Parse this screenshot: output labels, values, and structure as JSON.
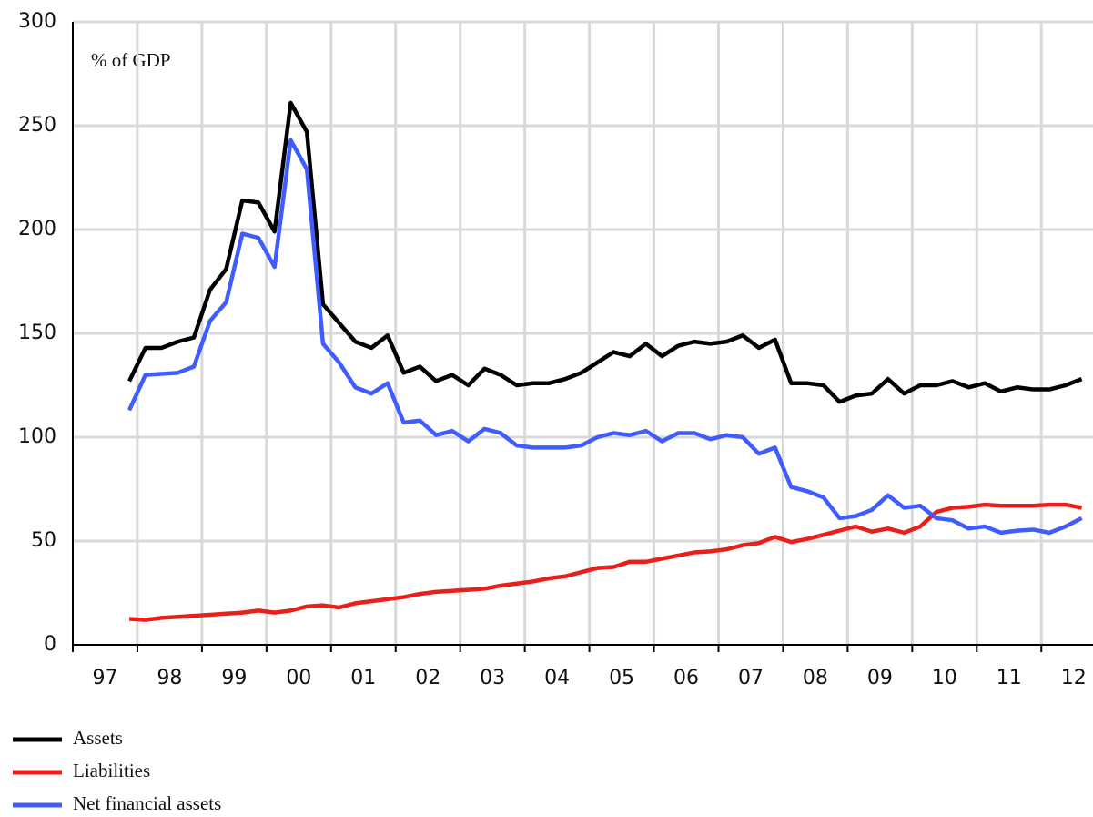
{
  "chart_data": {
    "type": "line",
    "annotation": "% of GDP",
    "x": [
      1997.875,
      1998.125,
      1998.375,
      1998.625,
      1998.875,
      1999.125,
      1999.375,
      1999.625,
      1999.875,
      2000.125,
      2000.375,
      2000.625,
      2000.875,
      2001.125,
      2001.375,
      2001.625,
      2001.875,
      2002.125,
      2002.375,
      2002.625,
      2002.875,
      2003.125,
      2003.375,
      2003.625,
      2003.875,
      2004.125,
      2004.375,
      2004.625,
      2004.875,
      2005.125,
      2005.375,
      2005.625,
      2005.875,
      2006.125,
      2006.375,
      2006.625,
      2006.875,
      2007.125,
      2007.375,
      2007.625,
      2007.875,
      2008.125,
      2008.375,
      2008.625,
      2008.875,
      2009.125,
      2009.375,
      2009.625,
      2009.875,
      2010.125,
      2010.375,
      2010.625,
      2010.875,
      2011.125,
      2011.375,
      2011.625,
      2011.875,
      2012.125,
      2012.375,
      2012.625
    ],
    "series": [
      {
        "name": "Assets",
        "color": "#000000",
        "values": [
          127,
          143,
          143,
          146,
          148,
          171,
          181,
          214,
          213,
          199,
          261,
          247,
          164,
          155,
          146,
          143,
          149,
          131,
          134,
          127,
          130,
          125,
          133,
          130,
          125,
          126,
          126,
          128,
          131,
          136,
          141,
          139,
          145,
          139,
          144,
          146,
          145,
          146,
          149,
          143,
          147,
          126,
          126,
          125,
          117,
          120,
          121,
          128,
          121,
          125,
          125,
          127,
          124,
          126,
          122,
          124,
          123,
          123,
          125,
          128
        ]
      },
      {
        "name": "Liabilities",
        "color": "#e8201c",
        "values": [
          12.5,
          12,
          13,
          13.5,
          14,
          14.5,
          15,
          15.5,
          16.5,
          15.5,
          16.5,
          18.5,
          19,
          18,
          20,
          21,
          22,
          23,
          24.5,
          25.5,
          26,
          26.5,
          27,
          28.5,
          29.5,
          30.5,
          32,
          33,
          35,
          37,
          37.5,
          40,
          40,
          41.5,
          43,
          44.5,
          45,
          46,
          48,
          49,
          52,
          49.5,
          51,
          53,
          55,
          57,
          54.5,
          56,
          54,
          57,
          64,
          66,
          66.5,
          67.5,
          67,
          67,
          67,
          67.5,
          67.5,
          66
        ]
      },
      {
        "name": "Net financial assets",
        "color": "#3f5cff",
        "values": [
          113,
          130,
          130.5,
          131,
          134,
          156,
          165,
          198,
          196,
          182,
          243,
          229,
          145,
          136,
          124,
          121,
          126,
          107,
          108,
          101,
          103,
          98,
          104,
          102,
          96,
          95,
          95,
          95,
          96,
          100,
          102,
          101,
          103,
          98,
          102,
          102,
          99,
          101,
          100,
          92,
          95,
          76,
          74,
          71,
          61,
          62,
          65,
          72,
          66,
          67,
          61,
          60,
          56,
          57,
          54,
          55,
          55.5,
          54,
          57,
          61
        ]
      }
    ],
    "xlim": [
      1997,
      2012.8
    ],
    "xticks": [
      {
        "value": 1997.5,
        "label": "97"
      },
      {
        "value": 1998.5,
        "label": "98"
      },
      {
        "value": 1999.5,
        "label": "99"
      },
      {
        "value": 2000.5,
        "label": "00"
      },
      {
        "value": 2001.5,
        "label": "01"
      },
      {
        "value": 2002.5,
        "label": "02"
      },
      {
        "value": 2003.5,
        "label": "03"
      },
      {
        "value": 2004.5,
        "label": "04"
      },
      {
        "value": 2005.5,
        "label": "05"
      },
      {
        "value": 2006.5,
        "label": "06"
      },
      {
        "value": 2007.5,
        "label": "07"
      },
      {
        "value": 2008.5,
        "label": "08"
      },
      {
        "value": 2009.5,
        "label": "09"
      },
      {
        "value": 2010.5,
        "label": "10"
      },
      {
        "value": 2011.5,
        "label": "11"
      },
      {
        "value": 2012.5,
        "label": "12"
      }
    ],
    "ylim": [
      0,
      300
    ],
    "yticks": [
      0,
      50,
      100,
      150,
      200,
      250,
      300
    ],
    "grid": true
  }
}
